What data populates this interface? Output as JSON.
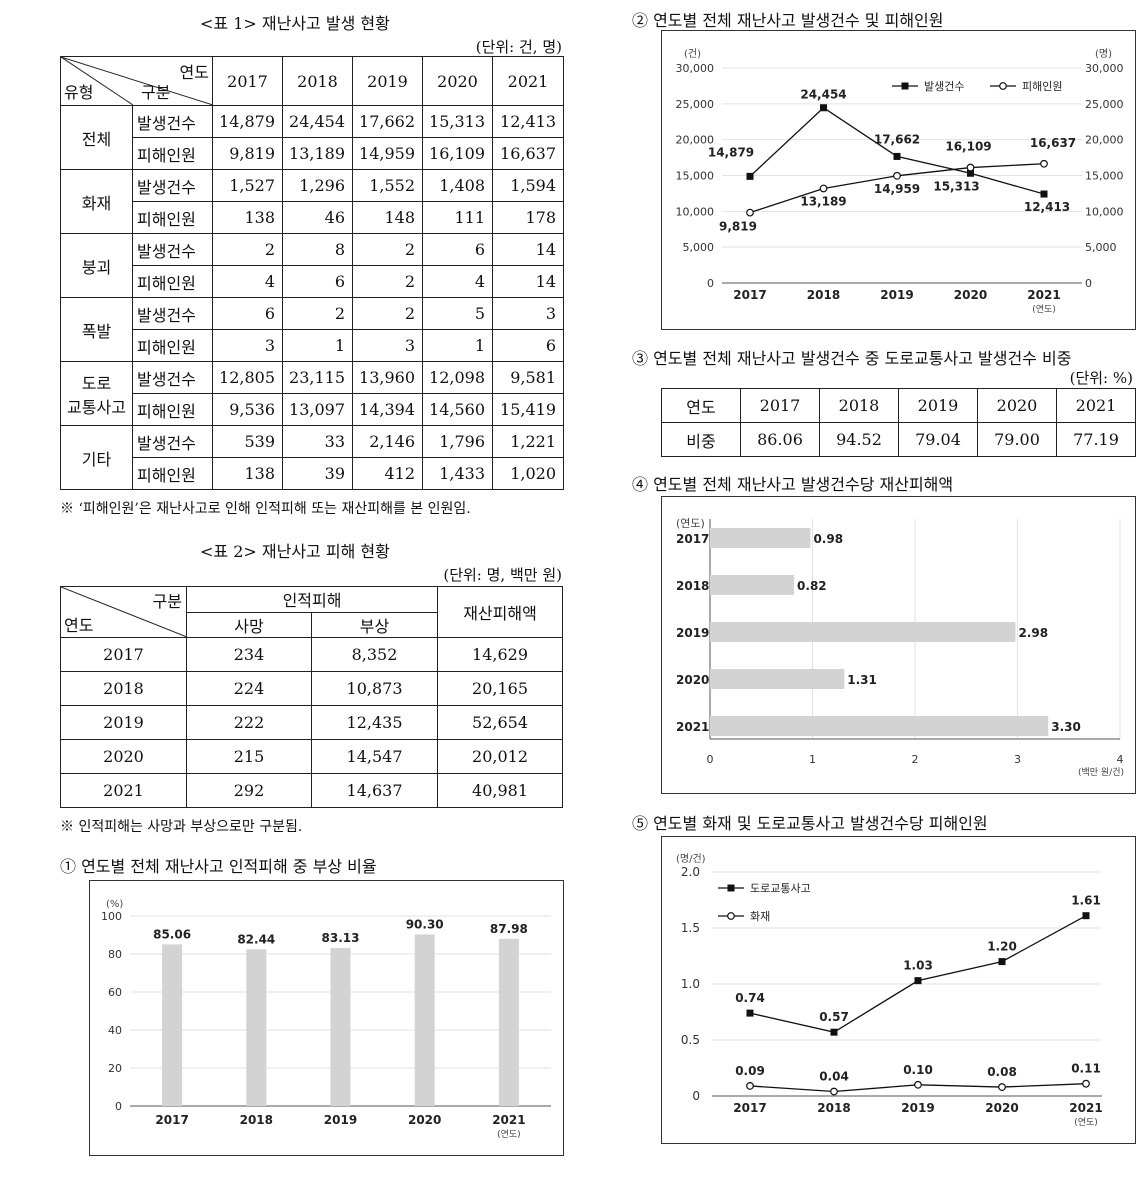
{
  "table1": {
    "title": "<표 1> 재난사고 발생 현황",
    "unit": "(단위: 건, 명)",
    "header_year": "연도",
    "header_gubun": "구분",
    "header_type": "유형",
    "years": [
      "2017",
      "2018",
      "2019",
      "2020",
      "2021"
    ],
    "rows": [
      {
        "type": "전체",
        "type2": "",
        "items": [
          {
            "label": "발생건수",
            "values": [
              "14,879",
              "24,454",
              "17,662",
              "15,313",
              "12,413"
            ]
          },
          {
            "label": "피해인원",
            "values": [
              "9,819",
              "13,189",
              "14,959",
              "16,109",
              "16,637"
            ]
          }
        ]
      },
      {
        "type": "화재",
        "type2": "",
        "items": [
          {
            "label": "발생건수",
            "values": [
              "1,527",
              "1,296",
              "1,552",
              "1,408",
              "1,594"
            ]
          },
          {
            "label": "피해인원",
            "values": [
              "138",
              "46",
              "148",
              "111",
              "178"
            ]
          }
        ]
      },
      {
        "type": "붕괴",
        "type2": "",
        "items": [
          {
            "label": "발생건수",
            "values": [
              "2",
              "8",
              "2",
              "6",
              "14"
            ]
          },
          {
            "label": "피해인원",
            "values": [
              "4",
              "6",
              "2",
              "4",
              "14"
            ]
          }
        ]
      },
      {
        "type": "폭발",
        "type2": "",
        "items": [
          {
            "label": "발생건수",
            "values": [
              "6",
              "2",
              "2",
              "5",
              "3"
            ]
          },
          {
            "label": "피해인원",
            "values": [
              "3",
              "1",
              "3",
              "1",
              "6"
            ]
          }
        ]
      },
      {
        "type": "도로",
        "type2": "교통사고",
        "items": [
          {
            "label": "발생건수",
            "values": [
              "12,805",
              "23,115",
              "13,960",
              "12,098",
              "9,581"
            ]
          },
          {
            "label": "피해인원",
            "values": [
              "9,536",
              "13,097",
              "14,394",
              "14,560",
              "15,419"
            ]
          }
        ]
      },
      {
        "type": "기타",
        "type2": "",
        "items": [
          {
            "label": "발생건수",
            "values": [
              "539",
              "33",
              "2,146",
              "1,796",
              "1,221"
            ]
          },
          {
            "label": "피해인원",
            "values": [
              "138",
              "39",
              "412",
              "1,433",
              "1,020"
            ]
          }
        ]
      }
    ],
    "note": "※ ‘피해인원’은 재난사고로 인해 인적피해 또는 재산피해를 본 인원임."
  },
  "table2": {
    "title": "<표 2> 재난사고 피해 현황",
    "unit": "(단위: 명, 백만 원)",
    "header_gubun": "구분",
    "header_year": "연도",
    "header_human": "인적피해",
    "header_death": "사망",
    "header_injury": "부상",
    "header_property": "재산피해액",
    "rows": [
      {
        "year": "2017",
        "death": "234",
        "injury": "8,352",
        "property": "14,629"
      },
      {
        "year": "2018",
        "death": "224",
        "injury": "10,873",
        "property": "20,165"
      },
      {
        "year": "2019",
        "death": "222",
        "injury": "12,435",
        "property": "52,654"
      },
      {
        "year": "2020",
        "death": "215",
        "injury": "14,547",
        "property": "20,012"
      },
      {
        "year": "2021",
        "death": "292",
        "injury": "14,637",
        "property": "40,981"
      }
    ],
    "note": "※ 인적피해는 사망과 부상으로만 구분됨."
  },
  "chart_titles": {
    "c1": "① 연도별 전체 재난사고 인적피해 중 부상 비율",
    "c2": "② 연도별 전체 재난사고 발생건수 및 피해인원",
    "c3": "③ 연도별 전체 재난사고 발생건수 중 도로교통사고 발생건수 비중",
    "c3_unit": "(단위: %)",
    "c4": "④ 연도별 전체 재난사고 발생건수당 재산피해액",
    "c5": "⑤ 연도별 화재 및 도로교통사고 발생건수당 피해인원"
  },
  "table3": {
    "header": "연도",
    "row_label": "비중",
    "years": [
      "2017",
      "2018",
      "2019",
      "2020",
      "2021"
    ],
    "values": [
      "86.06",
      "94.52",
      "79.04",
      "79.00",
      "77.19"
    ]
  },
  "chart_data": [
    {
      "id": "c1",
      "type": "bar",
      "categories": [
        "2017",
        "2018",
        "2019",
        "2020",
        "2021"
      ],
      "values": [
        85.06,
        82.44,
        83.13,
        90.3,
        87.98
      ],
      "labels": [
        "85.06",
        "82.44",
        "83.13",
        "90.30",
        "87.98"
      ],
      "ylim": [
        0,
        100
      ],
      "yticks": [
        "0",
        "20",
        "40",
        "60",
        "80",
        "100"
      ],
      "yunit": "(%)",
      "xunit": "(연도)",
      "color": "#d3d3d3"
    },
    {
      "id": "c2",
      "type": "line",
      "categories": [
        "2017",
        "2018",
        "2019",
        "2020",
        "2021"
      ],
      "ylim": [
        0,
        30000
      ],
      "yticks": [
        "0",
        "5,000",
        "10,000",
        "15,000",
        "20,000",
        "25,000",
        "30,000"
      ],
      "yunit_left": "(건)",
      "yunit_right": "(명)",
      "xunit": "(연도)",
      "series": [
        {
          "name": "발생건수",
          "marker": "square",
          "values": [
            14879,
            24454,
            17662,
            15313,
            12413
          ],
          "labels": [
            "14,879",
            "24,454",
            "17,662",
            "15,313",
            "12,413"
          ]
        },
        {
          "name": "피해인원",
          "marker": "circle",
          "values": [
            9819,
            13189,
            14959,
            16109,
            16637
          ],
          "labels": [
            "9,819",
            "13,189",
            "14,959",
            "16,109",
            "16,637"
          ]
        }
      ]
    },
    {
      "id": "c4",
      "type": "bar",
      "orientation": "horizontal",
      "categories": [
        "2017",
        "2018",
        "2019",
        "2020",
        "2021"
      ],
      "values": [
        0.98,
        0.82,
        2.98,
        1.31,
        3.3
      ],
      "labels": [
        "0.98",
        "0.82",
        "2.98",
        "1.31",
        "3.30"
      ],
      "xlim": [
        0,
        4
      ],
      "xticks": [
        "0",
        "1",
        "2",
        "3",
        "4"
      ],
      "xunit": "(백만 원/건)",
      "yunit": "(연도)",
      "color": "#d3d3d3"
    },
    {
      "id": "c5",
      "type": "line",
      "categories": [
        "2017",
        "2018",
        "2019",
        "2020",
        "2021"
      ],
      "ylim": [
        0,
        2.0
      ],
      "yticks": [
        "0",
        "0.5",
        "1.0",
        "1.5",
        "2.0"
      ],
      "yunit": "(명/건)",
      "xunit": "(연도)",
      "series": [
        {
          "name": "도로교통사고",
          "marker": "square",
          "values": [
            0.74,
            0.57,
            1.03,
            1.2,
            1.61
          ],
          "labels": [
            "0.74",
            "0.57",
            "1.03",
            "1.20",
            "1.61"
          ]
        },
        {
          "name": "화재",
          "marker": "circle",
          "values": [
            0.09,
            0.04,
            0.1,
            0.08,
            0.11
          ],
          "labels": [
            "0.09",
            "0.04",
            "0.10",
            "0.08",
            "0.11"
          ]
        }
      ]
    }
  ]
}
